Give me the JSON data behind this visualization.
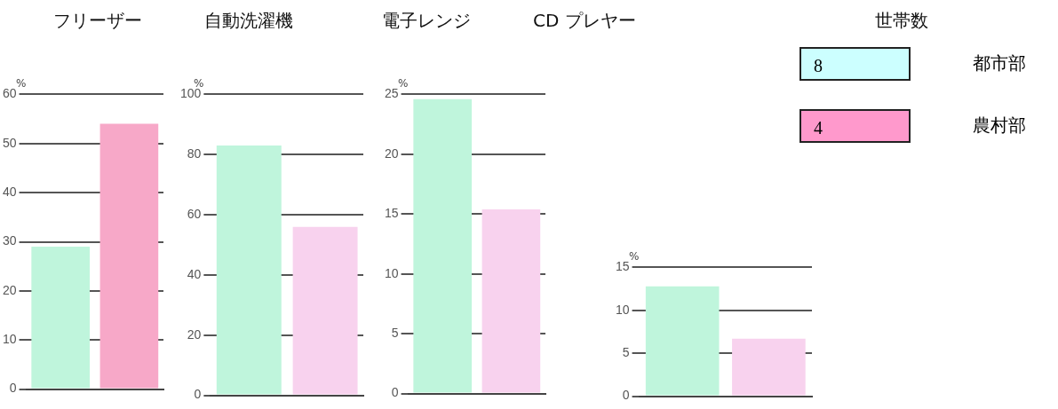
{
  "chart_data": [
    {
      "type": "bar",
      "title": "フリーザー",
      "ylabel": "%",
      "categories": [
        null,
        null
      ],
      "values": [
        29,
        54
      ],
      "colors": [
        "#bff5dc",
        "#f7a8c8"
      ],
      "ylim": [
        0,
        60
      ],
      "yticks": [
        0,
        10,
        20,
        30,
        40,
        50,
        60
      ],
      "grid": "y"
    },
    {
      "type": "bar",
      "title": "自動洗濯機",
      "ylabel": "%",
      "categories": [
        null,
        null
      ],
      "values": [
        83,
        56
      ],
      "colors": [
        "#bff5dc",
        "#f8d2ee"
      ],
      "ylim": [
        0,
        100
      ],
      "yticks": [
        0,
        20,
        40,
        60,
        80,
        100
      ],
      "grid": "y"
    },
    {
      "type": "bar",
      "title": "電子レンジ",
      "ylabel": "%",
      "categories": [
        null,
        null
      ],
      "values": [
        24.6,
        15.4
      ],
      "colors": [
        "#bff5dc",
        "#f8d2ee"
      ],
      "ylim": [
        0,
        25
      ],
      "yticks": [
        0,
        5,
        10,
        15,
        20,
        25
      ],
      "grid": "y"
    },
    {
      "type": "bar",
      "title": "CD プレヤー",
      "ylabel": "%",
      "categories": [
        null,
        null
      ],
      "values": [
        12.8,
        6.7
      ],
      "colors": [
        "#bff5dc",
        "#f8d2ee"
      ],
      "ylim": [
        0,
        15
      ],
      "yticks": [
        0,
        5,
        10,
        15
      ],
      "grid": "y"
    },
    {
      "type": "other",
      "title": "世帯数",
      "annotations": [
        "8",
        "都市部",
        "4",
        "農村部"
      ],
      "colors": [
        "#ccffff",
        "#ff99cc"
      ]
    }
  ]
}
